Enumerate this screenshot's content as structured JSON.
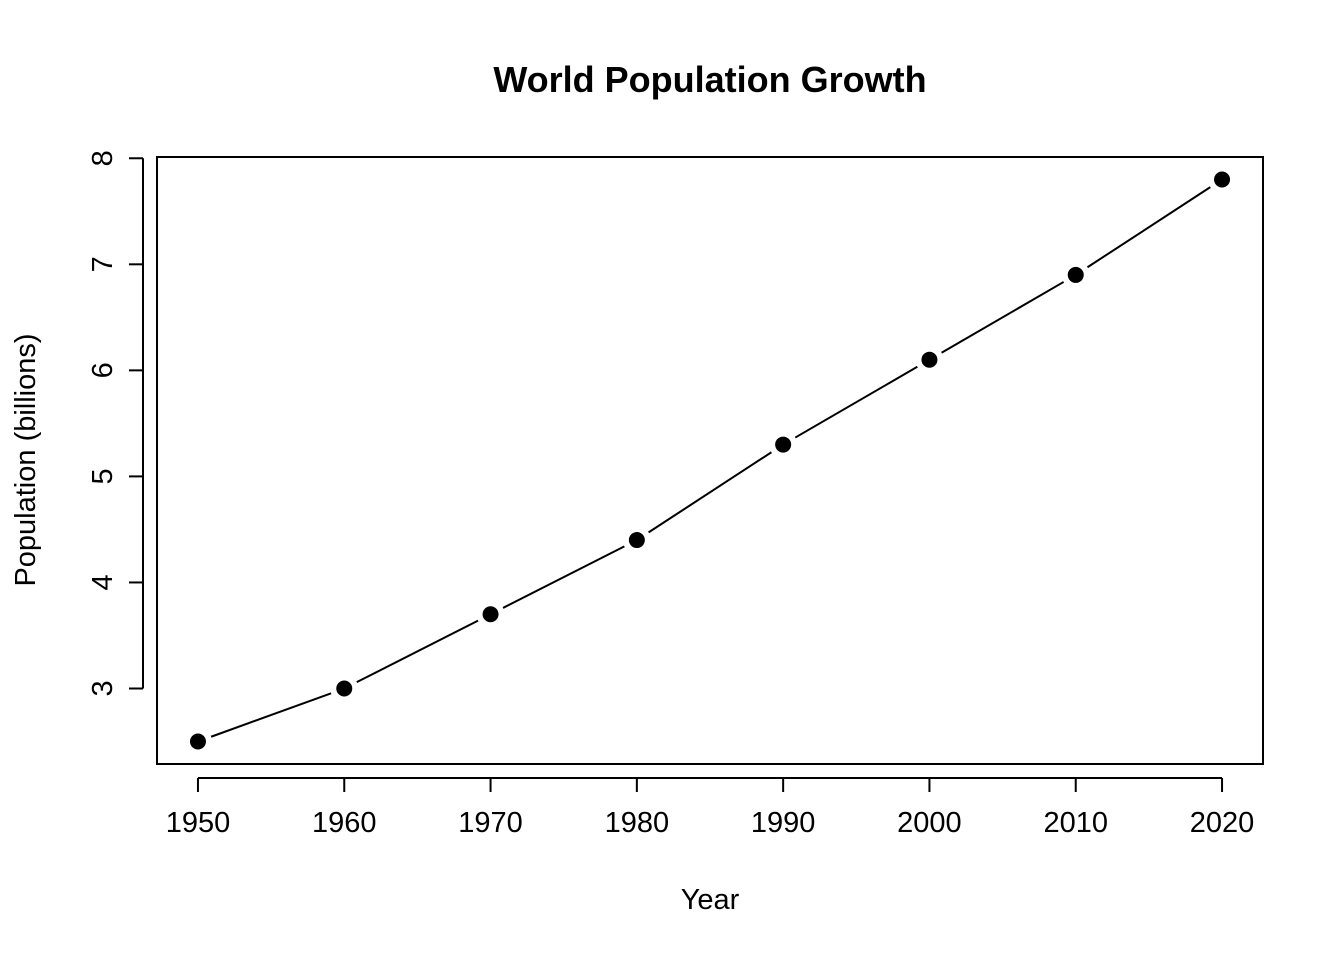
{
  "chart_data": {
    "type": "line",
    "title": "World Population Growth",
    "xlabel": "Year",
    "ylabel": "Population (billions)",
    "x": [
      1950,
      1960,
      1970,
      1980,
      1990,
      2000,
      2010,
      2020
    ],
    "series": [
      {
        "name": "Population",
        "values": [
          2.5,
          3.0,
          3.7,
          4.4,
          5.3,
          6.1,
          6.9,
          7.8
        ]
      }
    ],
    "x_ticks": [
      "1950",
      "1960",
      "1970",
      "1980",
      "1990",
      "2000",
      "2010",
      "2020"
    ],
    "y_ticks": [
      "3",
      "4",
      "5",
      "6",
      "7",
      "8"
    ],
    "xlim": [
      1947.2,
      2022.8
    ],
    "ylim": [
      2.288,
      8.012
    ],
    "grid": false,
    "marker": "filled-circle",
    "line_style": "solid-with-gaps-at-points",
    "colors": {
      "line": "#000000",
      "marker": "#000000",
      "frame": "#000000"
    }
  }
}
